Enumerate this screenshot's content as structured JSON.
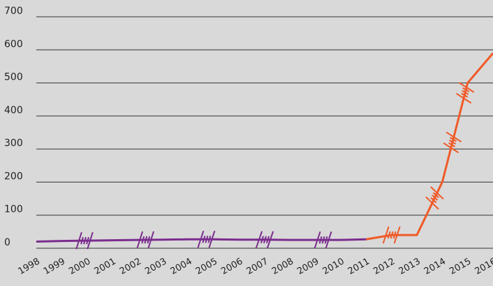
{
  "chart_data": {
    "type": "line",
    "categories": [
      "1998",
      "1999",
      "2000",
      "2001",
      "2002",
      "2003",
      "2004",
      "2005",
      "2006",
      "2007",
      "2008",
      "2009",
      "2010",
      "2011",
      "2012",
      "2013",
      "2014",
      "2015",
      "2016"
    ],
    "series": [
      {
        "color": "#7b2d8e",
        "values": [
          20,
          22,
          23,
          24,
          25,
          26,
          27,
          27,
          26,
          26,
          25,
          25,
          25,
          27,
          null,
          null,
          null,
          null,
          null
        ]
      },
      {
        "color": "#f05a28",
        "values": [
          null,
          null,
          null,
          null,
          null,
          null,
          null,
          null,
          null,
          null,
          null,
          null,
          null,
          27,
          40,
          40,
          200,
          500,
          590
        ]
      }
    ],
    "ylim": [
      0,
      700
    ],
    "yticks": [
      0,
      100,
      200,
      300,
      400,
      500,
      600,
      700
    ],
    "grid": true
  }
}
